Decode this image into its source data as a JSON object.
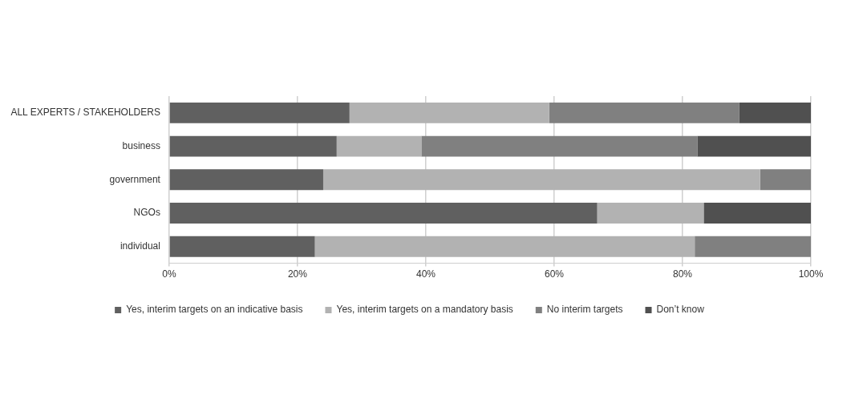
{
  "chart_data": {
    "type": "bar",
    "orientation": "horizontal",
    "stacked": true,
    "categories": [
      "ALL EXPERTS / STAKEHOLDERS",
      "business",
      "government",
      "NGOs",
      "individual"
    ],
    "series": [
      {
        "name": "Yes, interim targets on an indicative basis",
        "color": "#606060",
        "values": [
          28.1,
          26.1,
          24.0,
          66.7,
          22.7
        ]
      },
      {
        "name": "Yes, interim targets on a mandatory basis",
        "color": "#b2b2b2",
        "values": [
          31.1,
          13.2,
          68.1,
          16.6,
          59.2
        ]
      },
      {
        "name": "No interim targets",
        "color": "#808080",
        "values": [
          29.6,
          43.0,
          7.9,
          0,
          18.1
        ]
      },
      {
        "name": "Don’t know",
        "color": "#505050",
        "values": [
          11.2,
          17.7,
          0,
          16.7,
          0
        ]
      }
    ],
    "xlim": [
      0,
      100
    ],
    "xticks": [
      {
        "value": 0,
        "label": "0%"
      },
      {
        "value": 20,
        "label": "20%"
      },
      {
        "value": 40,
        "label": "40%"
      },
      {
        "value": 60,
        "label": "60%"
      },
      {
        "value": 80,
        "label": "80%"
      },
      {
        "value": 100,
        "label": "100%"
      }
    ],
    "grid": "x",
    "legend": "bottom"
  }
}
